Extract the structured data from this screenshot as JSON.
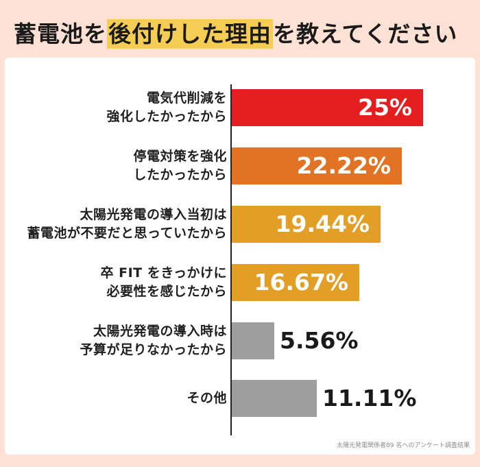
{
  "title": {
    "before": "蓄電池を",
    "highlight": "後付けした理由",
    "after": "を教えてください",
    "highlight_color": "#f5cd54"
  },
  "footnote": "太陽光発電関係者89 名へのアンケート調査結果",
  "chart_data": {
    "type": "bar",
    "orientation": "horizontal",
    "title": "蓄電池を後付けした理由を教えてください",
    "xlabel": "",
    "ylabel": "",
    "unit": "%",
    "grid": false,
    "legend": null,
    "categories": [
      "電気代削減を\n強化したかったから",
      "停電対策を強化\nしたかったから",
      "太陽光発電の導入当初は\n蓄電池が不要だと思っていたから",
      "卒 FIT をきっかけに\n必要性を感じたから",
      "太陽光発電の導入時は\n予算が足りなかったから",
      "その他"
    ],
    "values": [
      25,
      22.22,
      19.44,
      16.67,
      5.56,
      11.11
    ],
    "value_labels": [
      "25%",
      "22.22%",
      "19.44%",
      "16.67%",
      "5.56%",
      "11.11%"
    ],
    "colors": [
      "#e41e1e",
      "#e07424",
      "#e39e26",
      "#e39e26",
      "#9e9e9e",
      "#9e9e9e"
    ],
    "label_positions": [
      "inside",
      "inside",
      "inside",
      "inside",
      "outside",
      "outside"
    ],
    "source": "太陽光発電関係者89 名へのアンケート調査結果"
  }
}
